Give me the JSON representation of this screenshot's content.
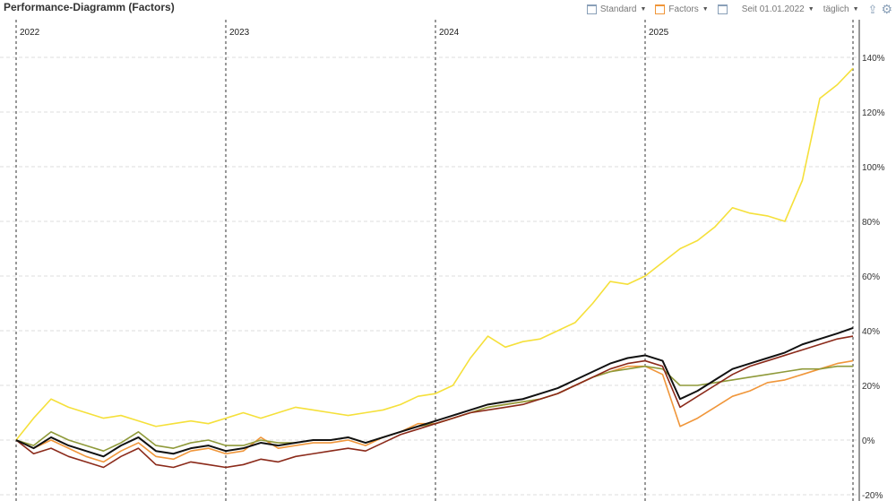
{
  "header": {
    "title": "Performance-Diagramm (Factors)",
    "standard_label": "Standard",
    "factors_label": "Factors",
    "period_label": "Seit 01.01.2022",
    "interval_label": "täglich",
    "icons": [
      "window-icon",
      "export-icon",
      "gear-icon"
    ]
  },
  "chart_data": {
    "type": "line",
    "x": [
      "2022-01",
      "2022-02",
      "2022-03",
      "2022-04",
      "2022-05",
      "2022-06",
      "2022-07",
      "2022-08",
      "2022-09",
      "2022-10",
      "2022-11",
      "2022-12",
      "2023-01",
      "2023-02",
      "2023-03",
      "2023-04",
      "2023-05",
      "2023-06",
      "2023-07",
      "2023-08",
      "2023-09",
      "2023-10",
      "2023-11",
      "2023-12",
      "2024-01",
      "2024-02",
      "2024-03",
      "2024-04",
      "2024-05",
      "2024-06",
      "2024-07",
      "2024-08",
      "2024-09",
      "2024-10",
      "2024-11",
      "2024-12",
      "2025-01",
      "2025-02",
      "2025-03",
      "2025-04",
      "2025-05",
      "2025-06",
      "2025-07",
      "2025-08",
      "2025-09",
      "2025-10",
      "2025-11",
      "2025-12",
      "2026-01"
    ],
    "x_tick_labels": [
      "2022",
      "2023",
      "2024",
      "2025"
    ],
    "y_tick_labels": [
      "-20%",
      "0%",
      "20%",
      "40%",
      "60%",
      "80%",
      "100%",
      "120%",
      "140%"
    ],
    "ylim": [
      -20,
      150
    ],
    "grid": true,
    "series": [
      {
        "color": "#f5e03a",
        "values": [
          0,
          8,
          15,
          12,
          10,
          8,
          9,
          7,
          5,
          6,
          7,
          6,
          8,
          10,
          8,
          10,
          12,
          11,
          10,
          9,
          10,
          11,
          13,
          16,
          17,
          20,
          30,
          38,
          34,
          36,
          37,
          40,
          43,
          50,
          58,
          57,
          60,
          65,
          70,
          73,
          78,
          85,
          83,
          82,
          80,
          95,
          125,
          130,
          136
        ]
      },
      {
        "color": "#f0963a",
        "values": [
          0,
          -3,
          0,
          -3,
          -6,
          -8,
          -4,
          -1,
          -6,
          -7,
          -4,
          -3,
          -5,
          -4,
          1,
          -3,
          -2,
          -1,
          -1,
          0,
          -2,
          1,
          3,
          6,
          6,
          8,
          10,
          12,
          13,
          14,
          15,
          17,
          20,
          23,
          25,
          27,
          27,
          24,
          5,
          8,
          12,
          16,
          18,
          21,
          22,
          24,
          26,
          28,
          29
        ]
      },
      {
        "color": "#8f9a3a",
        "values": [
          0,
          -2,
          3,
          0,
          -2,
          -4,
          -1,
          3,
          -2,
          -3,
          -1,
          0,
          -2,
          -2,
          0,
          -1,
          -1,
          0,
          0,
          1,
          -1,
          1,
          3,
          5,
          6,
          8,
          10,
          12,
          13,
          14,
          15,
          17,
          20,
          23,
          25,
          26,
          27,
          26,
          20,
          20,
          21,
          22,
          23,
          24,
          25,
          26,
          26,
          27,
          27
        ]
      },
      {
        "color": "#8b2a1a",
        "values": [
          0,
          -5,
          -3,
          -6,
          -8,
          -10,
          -6,
          -3,
          -9,
          -10,
          -8,
          -9,
          -10,
          -9,
          -7,
          -8,
          -6,
          -5,
          -4,
          -3,
          -4,
          -1,
          2,
          4,
          6,
          8,
          10,
          11,
          12,
          13,
          15,
          17,
          20,
          23,
          26,
          28,
          29,
          27,
          12,
          16,
          20,
          24,
          27,
          29,
          31,
          33,
          35,
          37,
          38
        ]
      },
      {
        "color": "#111111",
        "values": [
          0,
          -3,
          1,
          -2,
          -4,
          -6,
          -2,
          1,
          -4,
          -5,
          -3,
          -2,
          -4,
          -3,
          -1,
          -2,
          -1,
          0,
          0,
          1,
          -1,
          1,
          3,
          5,
          7,
          9,
          11,
          13,
          14,
          15,
          17,
          19,
          22,
          25,
          28,
          30,
          31,
          29,
          15,
          18,
          22,
          26,
          28,
          30,
          32,
          35,
          37,
          39,
          41
        ]
      }
    ]
  }
}
